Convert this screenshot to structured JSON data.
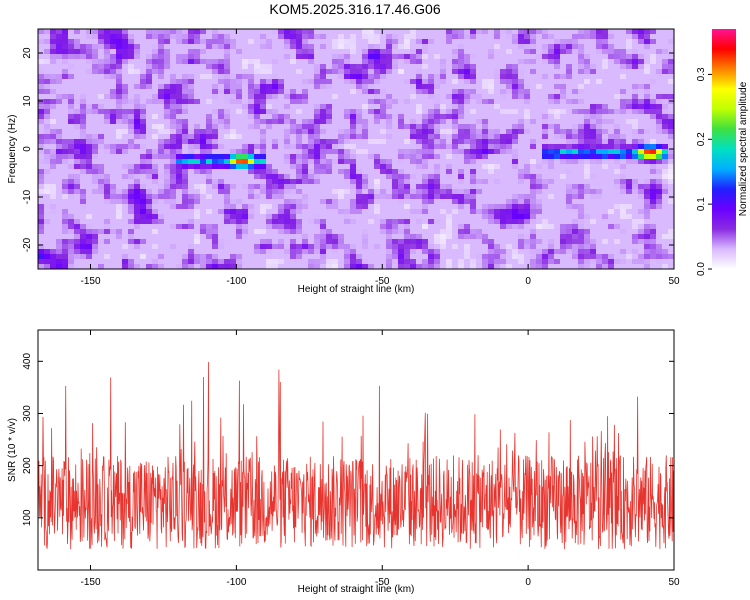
{
  "title": "KOM5.2025.316.17.46.G06",
  "chart_data": [
    {
      "type": "heatmap",
      "xlabel": "Height of straight line (km)",
      "ylabel": "Frequency (Hz)",
      "xlim": [
        -168,
        50
      ],
      "ylim": [
        -25,
        25
      ],
      "xticks": [
        -150,
        -100,
        -50,
        0,
        50
      ],
      "yticks": [
        -20,
        -10,
        0,
        10,
        20
      ],
      "colorbar": {
        "label": "Normalized spectral amplitude",
        "range": [
          0,
          0.37
        ],
        "ticks": [
          0.0,
          0.1,
          0.2,
          0.3
        ],
        "colormap": [
          "#ffffff",
          "#d8b8ff",
          "#8a2be2",
          "#6a00ff",
          "#2020ff",
          "#00b0ff",
          "#00e0c0",
          "#40e040",
          "#c0ff00",
          "#ffff00",
          "#ff8000",
          "#ff0000",
          "#ff1493"
        ]
      },
      "features": [
        {
          "description_free": true,
          "x_start": -120,
          "x_end": -90,
          "freq": -2.5,
          "peak_x": -98,
          "peak_amp": 0.33
        },
        {
          "x_start": 5,
          "x_end": 48,
          "freq": -0.8,
          "peak_x": 42,
          "peak_amp": 0.35
        }
      ]
    },
    {
      "type": "line",
      "xlabel": "Height of straight line (km)",
      "ylabel": "SNR (10 * v/v)",
      "xlim": [
        -168,
        50
      ],
      "ylim": [
        0,
        460
      ],
      "xticks": [
        -150,
        -100,
        -50,
        0,
        50
      ],
      "yticks": [
        100,
        200,
        300,
        400
      ],
      "color": "#e8342e",
      "baseline": 130,
      "spread": 90
    }
  ]
}
